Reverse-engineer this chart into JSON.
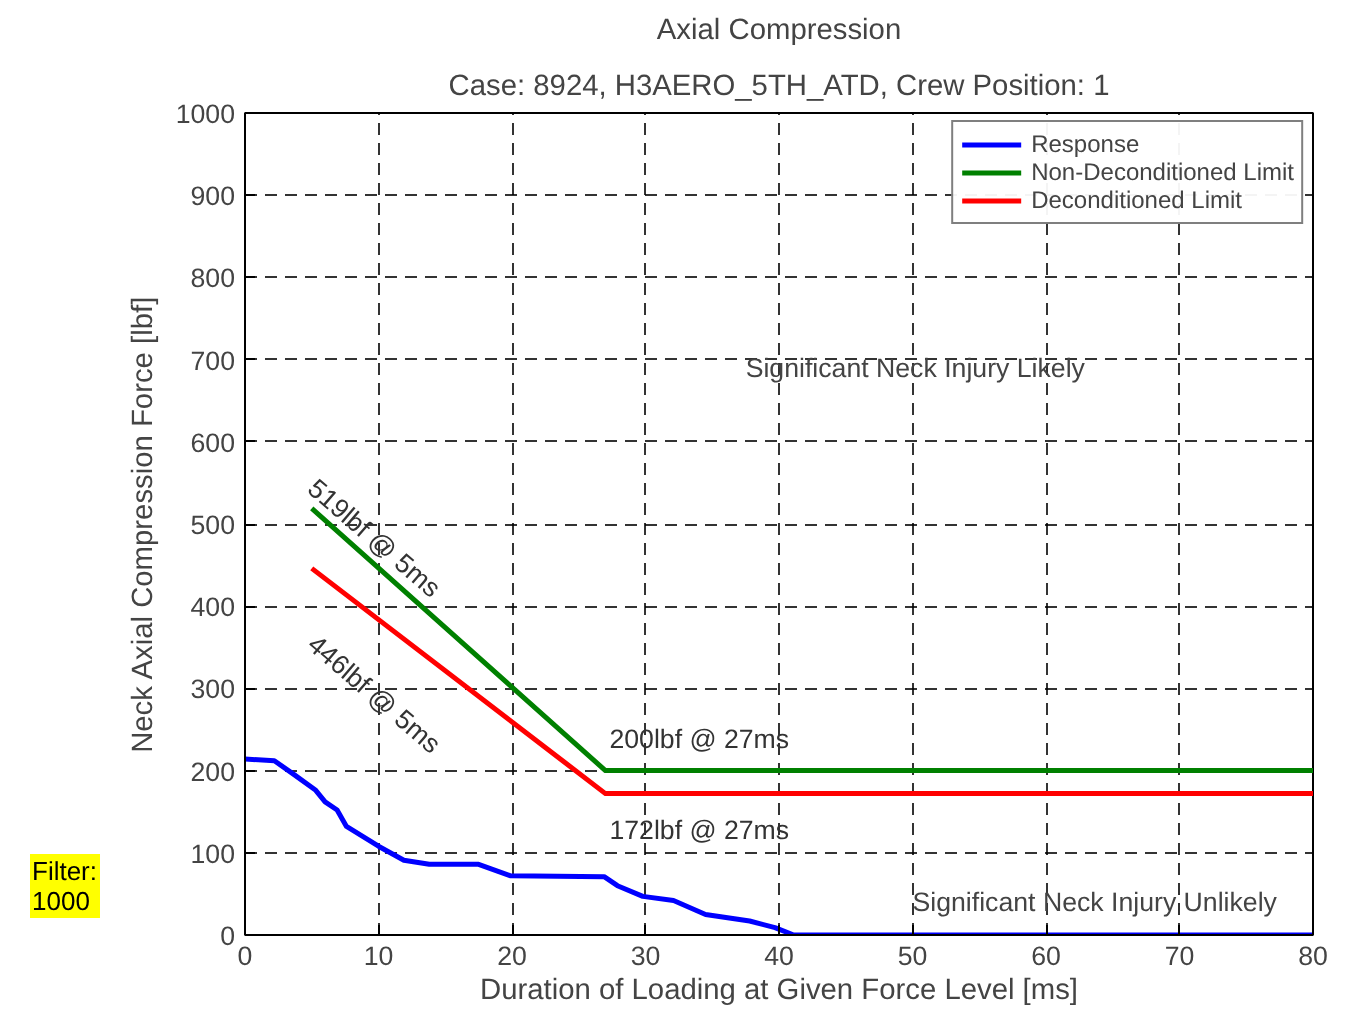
{
  "chart_data": {
    "type": "line",
    "title": "Axial Compression",
    "subtitle": "Case: 8924, H3AERO_5TH_ATD, Crew Position: 1",
    "xlabel": "Duration of Loading at Given Force Level [ms]",
    "ylabel": "Neck Axial Compression Force [lbf]",
    "xlim": [
      0,
      80
    ],
    "ylim": [
      0,
      1000
    ],
    "xticks": [
      0,
      10,
      20,
      30,
      40,
      50,
      60,
      70,
      80
    ],
    "yticks": [
      0,
      100,
      200,
      300,
      400,
      500,
      600,
      700,
      800,
      900,
      1000
    ],
    "grid": true,
    "legend": "top right",
    "series": [
      {
        "name": "Response",
        "color": "#0000ff",
        "x": [
          0,
          2.2,
          3.6,
          5.3,
          6.0,
          6.9,
          7.6,
          10,
          11.9,
          13.8,
          17.5,
          19.9,
          26.9,
          27.9,
          29.8,
          32.1,
          34.5,
          37.8,
          39.7,
          41.1,
          80
        ],
        "values": [
          214,
          212,
          196,
          176,
          162,
          152,
          132,
          108,
          91,
          86,
          86,
          72,
          71,
          60,
          47,
          42,
          25,
          17,
          9,
          0,
          0
        ]
      },
      {
        "name": "Non-Deconditioned Limit",
        "color": "#008000",
        "x": [
          5,
          27,
          80
        ],
        "values": [
          519,
          200,
          200
        ]
      },
      {
        "name": "Deconditioned Limit",
        "color": "#ff0000",
        "x": [
          5,
          27,
          80
        ],
        "values": [
          446,
          172,
          172
        ]
      }
    ],
    "annotations": [
      "519lbf @ 5ms",
      "446lbf @ 5ms",
      "200lbf @ 27ms",
      "172lbf @ 27ms",
      "Significant Neck Injury Likely",
      "Significant Neck Injury Unlikely",
      "Filter:\n1000"
    ]
  }
}
